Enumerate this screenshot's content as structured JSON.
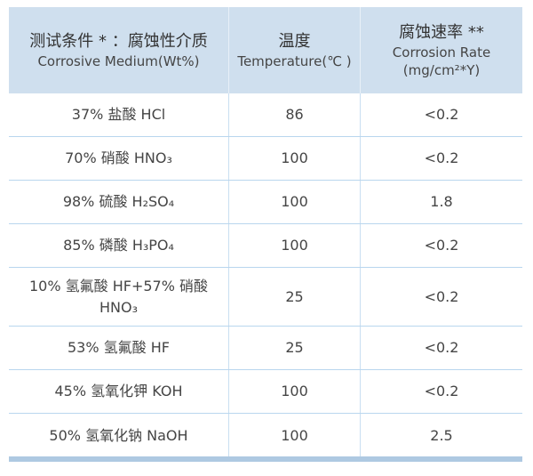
{
  "header": {
    "medium_zh": "测试条件 * ：腐蚀性介质",
    "medium_en": "Corrosive Medium(Wt%)",
    "temp_zh": "温度",
    "temp_en": "Temperature(℃ )",
    "rate_zh": "腐蚀速率 **",
    "rate_en": "Corrosion Rate",
    "rate_unit": "(mg/cm²*Y)"
  },
  "chart_data": {
    "type": "table",
    "title": "测试条件：腐蚀性介质 Corrosive Medium corrosion test results",
    "columns": [
      "测试条件 * ：腐蚀性介质 Corrosive Medium(Wt%)",
      "温度 Temperature(℃)",
      "腐蚀速率 ** Corrosion Rate (mg/cm²*Y)"
    ],
    "rows": [
      {
        "medium": "37% 盐酸 HCl",
        "temperature": "86",
        "rate": "<0.2"
      },
      {
        "medium": "70% 硝酸 HNO₃",
        "temperature": "100",
        "rate": "<0.2"
      },
      {
        "medium": "98% 硫酸 H₂SO₄",
        "temperature": "100",
        "rate": "1.8"
      },
      {
        "medium": "85% 磷酸 H₃PO₄",
        "temperature": "100",
        "rate": "<0.2"
      },
      {
        "medium": "10% 氢氟酸 HF+57% 硝酸\nHNO₃",
        "temperature": "25",
        "rate": "<0.2"
      },
      {
        "medium": "53% 氢氟酸 HF",
        "temperature": "25",
        "rate": "<0.2"
      },
      {
        "medium": "45% 氢氧化钾 KOH",
        "temperature": "100",
        "rate": "<0.2"
      },
      {
        "medium": "50% 氢氧化钠 NaOH",
        "temperature": "100",
        "rate": "2.5"
      }
    ]
  },
  "colors": {
    "header_bg": "#cfdfee",
    "header_divider": "#e8f0f8",
    "row_divider": "#b9d6ee",
    "column_divider": "#c9def1",
    "bottom_bar": "#aec9e2",
    "text": "#454545",
    "text_strong": "#333333"
  }
}
